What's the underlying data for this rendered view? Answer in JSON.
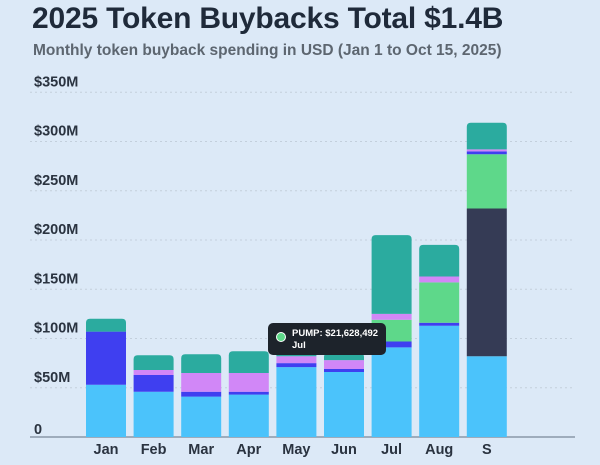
{
  "title": "2025 Token Buybacks Total $1.4B",
  "subtitle": "Monthly token buyback spending in USD (Jan 1 to Oct 15, 2025)",
  "tooltip": {
    "line1": "PUMP: $21,628,492",
    "line2": "Jul",
    "series_color": "#5ed88a"
  },
  "colors": {
    "background": "#dce9f7",
    "gridline": "#c3cfdc",
    "axis": "#7a8898"
  },
  "chart_data": {
    "type": "bar",
    "stacked": true,
    "ylim": [
      0,
      350
    ],
    "yticks": [
      0,
      50,
      100,
      150,
      200,
      250,
      300,
      350
    ],
    "ytick_labels": [
      "0",
      "$50M",
      "$100M",
      "$150M",
      "$200M",
      "$250M",
      "$300M",
      "$350M"
    ],
    "categories": [
      "Jan",
      "Feb",
      "Mar",
      "Apr",
      "May",
      "Jun",
      "Jul",
      "Aug",
      "S"
    ],
    "grid": true,
    "series": [
      {
        "color": "#4bc3fb",
        "values": [
          53,
          46,
          41,
          43,
          71,
          66,
          91,
          113,
          82
        ]
      },
      {
        "color": "#3f3ff0",
        "values": [
          54,
          17,
          5,
          3,
          4,
          3,
          6,
          3,
          0
        ]
      },
      {
        "color": "#353b55",
        "values": [
          0,
          0,
          0,
          0,
          0,
          0,
          0,
          0,
          150
        ]
      },
      {
        "color": "#5ed88a",
        "values": [
          0,
          0,
          0,
          0,
          0,
          0,
          22,
          41,
          55
        ]
      },
      {
        "color": "#3f3ff0",
        "values": [
          0,
          0,
          0,
          0,
          0,
          0,
          0,
          0,
          3
        ]
      },
      {
        "color": "#d187f7",
        "values": [
          0,
          5,
          19,
          19,
          7,
          9,
          6,
          6,
          2
        ]
      },
      {
        "color": "#2bab9f",
        "values": [
          13,
          15,
          19,
          22,
          5,
          7,
          80,
          32,
          27
        ]
      }
    ]
  }
}
